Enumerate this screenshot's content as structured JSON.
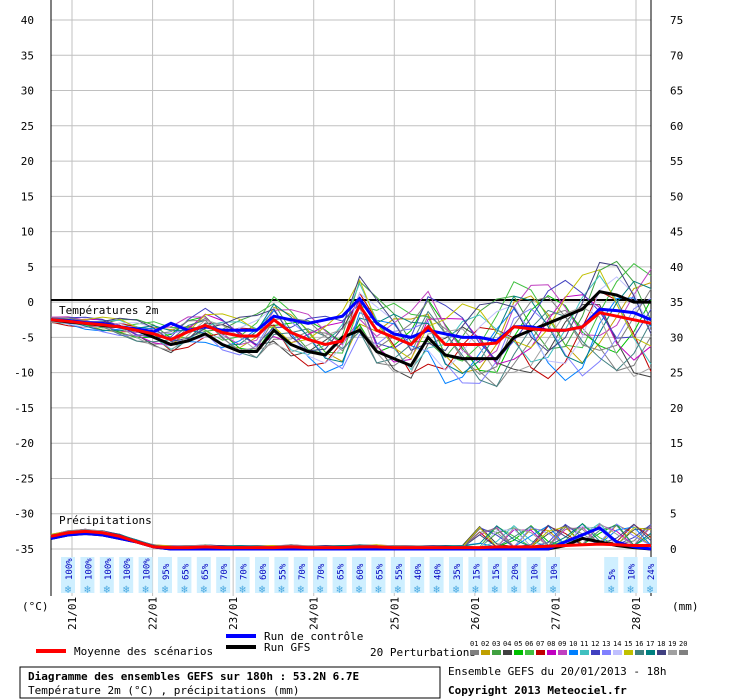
{
  "chart_data": {
    "type": "line",
    "x_dates": [
      "21/01",
      "22/01",
      "23/01",
      "24/01",
      "25/01",
      "26/01",
      "27/01",
      "28/01"
    ],
    "temp_axis": {
      "ylim": [
        -35,
        40
      ],
      "ticks": [
        40,
        35,
        30,
        25,
        20,
        15,
        10,
        5,
        0,
        -5,
        -10,
        -15,
        -20,
        -25,
        -30,
        -35
      ],
      "unit": "(°C)"
    },
    "precip_axis": {
      "ylim": [
        0,
        75
      ],
      "ticks": [
        75,
        70,
        65,
        60,
        55,
        50,
        45,
        40,
        35,
        30,
        25,
        20,
        15,
        10,
        5,
        0
      ],
      "unit": "(mm)"
    },
    "panel_labels": {
      "temperature": "Températures 2m",
      "precipitation": "Précipitations"
    },
    "snow_probabilities": [
      "100%",
      "100%",
      "100%",
      "100%",
      "100%",
      "95%",
      "65%",
      "65%",
      "70%",
      "70%",
      "60%",
      "55%",
      "70%",
      "70%",
      "65%",
      "60%",
      "65%",
      "55%",
      "40%",
      "40%",
      "35%",
      "15%",
      "15%",
      "20%",
      "10%",
      "10%",
      "",
      "",
      "5%",
      "10%",
      "24%"
    ],
    "legend": {
      "mean": "Moyenne des scénarios",
      "control": "Run de contrôle",
      "gfs": "Run GFS",
      "perturbations": "20 Perturbations",
      "perturbation_ids": [
        "01",
        "02",
        "03",
        "04",
        "05",
        "06",
        "07",
        "08",
        "09",
        "10",
        "11",
        "12",
        "13",
        "14",
        "15",
        "16",
        "17",
        "18",
        "19",
        "20"
      ],
      "perturbation_colors": [
        "#808080",
        "#c0a000",
        "#40a040",
        "#404040",
        "#00c000",
        "#40c040",
        "#c00000",
        "#c000c0",
        "#c040c0",
        "#0080ff",
        "#40c0c0",
        "#4040c0",
        "#8080ff",
        "#c0c0ff",
        "#c0c000",
        "#408080",
        "#008080",
        "#404080",
        "#a0a0a0",
        "#808080"
      ]
    },
    "colors": {
      "mean": "#ff0000",
      "control": "#0000ff",
      "gfs": "#000000"
    },
    "series": [
      {
        "name": "Moyenne des scénarios",
        "temperature": [
          -2.5,
          -2.7,
          -3,
          -3.2,
          -3.5,
          -4,
          -4.5,
          -5.3,
          -4.2,
          -3.3,
          -4.3,
          -4.8,
          -4.8,
          -2.5,
          -4.3,
          -5.3,
          -6,
          -5.5,
          -0.5,
          -4,
          -5,
          -6,
          -3.5,
          -6,
          -6,
          -6,
          -5.8,
          -3.5,
          -3.8,
          -4,
          -4,
          -3.5,
          -1.5,
          -2,
          -2.5,
          -3
        ],
        "precipitation": [
          1.8,
          2.3,
          2.5,
          2.3,
          1.8,
          1,
          0.3,
          0.2,
          0.2,
          0.3,
          0.2,
          0.2,
          0.2,
          0.2,
          0.3,
          0.2,
          0.2,
          0.2,
          0.3,
          0.3,
          0.2,
          0.2,
          0.2,
          0.2,
          0.2,
          0.2,
          0.3,
          0.3,
          0.3,
          0.4,
          0.5,
          0.6,
          0.7,
          0.6,
          0.5,
          0.5
        ]
      },
      {
        "name": "Run de contrôle",
        "temperature": [
          -2.5,
          -2.6,
          -2.9,
          -3,
          -3.5,
          -3.8,
          -4.2,
          -3,
          -4,
          -3.5,
          -4,
          -4,
          -4,
          -2,
          -2.5,
          -3,
          -2.5,
          -2,
          0.5,
          -3,
          -4.5,
          -5,
          -4,
          -4.5,
          -5,
          -5,
          -5.5,
          -3.5,
          -3.5,
          -4,
          -4,
          -3.5,
          -1,
          -1.2,
          -1.5,
          -2.5
        ],
        "precipitation": [
          1.5,
          2,
          2.2,
          2,
          1.5,
          1,
          0.3,
          0,
          0,
          0,
          0,
          0,
          0,
          0,
          0,
          0,
          0,
          0,
          0,
          0,
          0,
          0,
          0,
          0,
          0,
          0,
          0,
          0,
          0,
          0,
          1,
          2,
          3,
          1,
          0.3,
          0
        ]
      },
      {
        "name": "Run GFS",
        "temperature": [
          -2.5,
          -2.8,
          -3,
          -3.3,
          -3.5,
          -4,
          -5,
          -6,
          -5.5,
          -4.5,
          -6,
          -7,
          -7,
          -4,
          -6,
          -7,
          -7.5,
          -5,
          -4,
          -7,
          -8,
          -9,
          -5,
          -7.5,
          -8,
          -8,
          -8,
          -5,
          -4,
          -3,
          -2,
          -1,
          1.5,
          1,
          0,
          0
        ],
        "precipitation": [
          1.5,
          2,
          2.2,
          2,
          1.5,
          1,
          0.3,
          0,
          0,
          0,
          0,
          0,
          0,
          0,
          0,
          0,
          0,
          0,
          0,
          0,
          0,
          0,
          0,
          0,
          0,
          0,
          0,
          0,
          0,
          0,
          0.5,
          1.5,
          1,
          0.5,
          0.2,
          0
        ]
      }
    ],
    "footer": {
      "title": "Diagramme des ensembles GEFS sur 180h : 53.2N 6.7E",
      "subtitle": "Température 2m (°C) , précipitations (mm)",
      "run": "Ensemble GEFS du 20/01/2013 - 18h",
      "copyright": "Copyright 2013 Meteociel.fr"
    }
  }
}
